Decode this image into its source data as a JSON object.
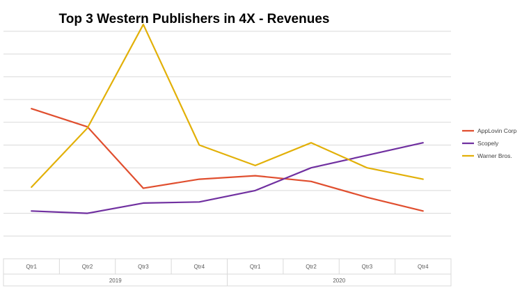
{
  "chart_data": {
    "type": "line",
    "title": "Top 3 Western Publishers in 4X - Revenues",
    "categories": [
      "Qtr1",
      "Qtr2",
      "Qtr3",
      "Qtr4",
      "Qtr1",
      "Qtr2",
      "Qtr3",
      "Qtr4"
    ],
    "groups": [
      {
        "label": "2019",
        "span": [
          0,
          3
        ]
      },
      {
        "label": "2020",
        "span": [
          4,
          7
        ]
      }
    ],
    "xlabel": "",
    "ylabel": "",
    "ylim": [
      0,
      10
    ],
    "y_gridlines": 10,
    "y_tick_labels_visible": false,
    "grid": true,
    "legend_position": "right",
    "series": [
      {
        "name": "AppLovin Corp",
        "color": "#e04e2e",
        "values": [
          6.6,
          5.8,
          3.1,
          3.5,
          3.65,
          3.4,
          2.7,
          2.1
        ]
      },
      {
        "name": "Scopely",
        "color": "#7030a0",
        "values": [
          2.1,
          2.0,
          2.45,
          2.5,
          3.0,
          4.0,
          4.55,
          5.1
        ]
      },
      {
        "name": "Warner Bros.",
        "color": "#e2b008",
        "values": [
          3.15,
          5.75,
          10.3,
          5.0,
          4.1,
          5.1,
          4.0,
          3.5
        ]
      }
    ]
  }
}
